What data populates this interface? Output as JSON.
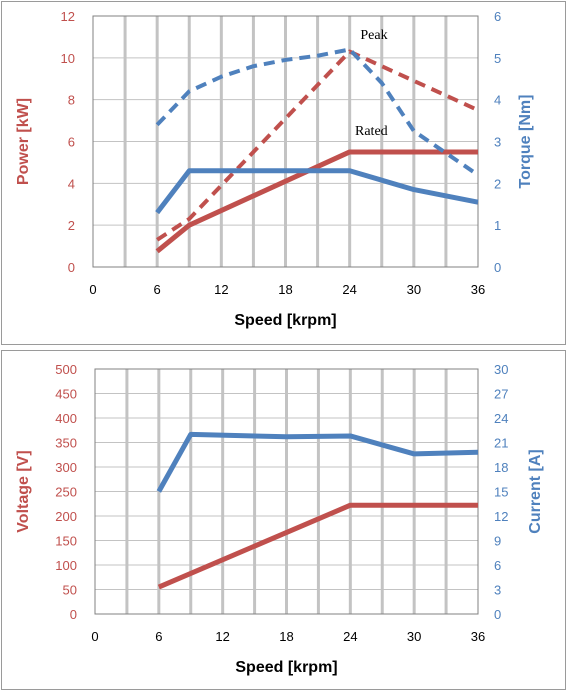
{
  "colors": {
    "power": "#c0504d",
    "torque": "#4f81bd",
    "grid": "#c3c3c3",
    "frame": "#808080",
    "text": "#000000"
  },
  "chart_data": [
    {
      "type": "line",
      "xlabel": "Speed [krpm]",
      "ylabel": "Power [kW]",
      "ylabel_right": "Torque [Nm]",
      "xlim": [
        0,
        36
      ],
      "ylim": [
        0,
        12
      ],
      "ylim_right": [
        0,
        6
      ],
      "x_ticks": [
        "0",
        "6",
        "12",
        "18",
        "24",
        "30",
        "36"
      ],
      "y_ticks": [
        "0",
        "2",
        "4",
        "6",
        "8",
        "10",
        "12"
      ],
      "y_ticks_right": [
        "0",
        "1",
        "2",
        "3",
        "4",
        "5",
        "6"
      ],
      "grid": true,
      "annotations": [
        {
          "text": "Peak",
          "x": 25,
          "y": 10.9
        },
        {
          "text": "Rated",
          "x": 24.5,
          "y": 6.3
        }
      ],
      "series": [
        {
          "axis": "left",
          "style": "solid",
          "color": "#c0504d",
          "x": [
            6,
            9,
            24,
            36
          ],
          "y": [
            0.75,
            2.0,
            5.5,
            5.5
          ]
        },
        {
          "axis": "left",
          "style": "dashed",
          "color": "#c0504d",
          "x": [
            6,
            9,
            24,
            36
          ],
          "y": [
            1.3,
            2.3,
            10.3,
            7.5
          ]
        },
        {
          "axis": "right",
          "style": "solid",
          "color": "#4f81bd",
          "x": [
            6,
            9,
            24,
            30,
            36
          ],
          "y": [
            1.3,
            2.3,
            2.3,
            1.85,
            1.55
          ]
        },
        {
          "axis": "right",
          "style": "dashed",
          "color": "#4f81bd",
          "x": [
            6,
            9,
            12,
            15,
            18,
            21,
            24,
            27,
            30,
            36
          ],
          "y": [
            3.4,
            4.2,
            4.55,
            4.8,
            4.95,
            5.05,
            5.2,
            4.4,
            3.25,
            2.2
          ]
        }
      ]
    },
    {
      "type": "line",
      "xlabel": "Speed [krpm]",
      "ylabel": "Voltage [V]",
      "ylabel_right": "Current [A]",
      "xlim": [
        0,
        36
      ],
      "ylim": [
        0,
        500
      ],
      "ylim_right": [
        0,
        30
      ],
      "x_ticks": [
        "0",
        "6",
        "12",
        "18",
        "24",
        "30",
        "36"
      ],
      "y_ticks": [
        "0",
        "50",
        "100",
        "150",
        "200",
        "250",
        "300",
        "350",
        "400",
        "450",
        "500"
      ],
      "y_ticks_right": [
        "0",
        "3",
        "6",
        "9",
        "12",
        "15",
        "18",
        "21",
        "24",
        "27",
        "30"
      ],
      "grid": true,
      "annotations": [],
      "series": [
        {
          "axis": "left",
          "style": "solid",
          "color": "#c0504d",
          "x": [
            6,
            24,
            36
          ],
          "y": [
            55,
            222,
            222
          ]
        },
        {
          "axis": "right",
          "style": "solid",
          "color": "#4f81bd",
          "x": [
            6,
            9,
            18,
            24,
            30,
            36
          ],
          "y": [
            15,
            22,
            21.7,
            21.8,
            19.6,
            19.8
          ]
        }
      ]
    }
  ]
}
